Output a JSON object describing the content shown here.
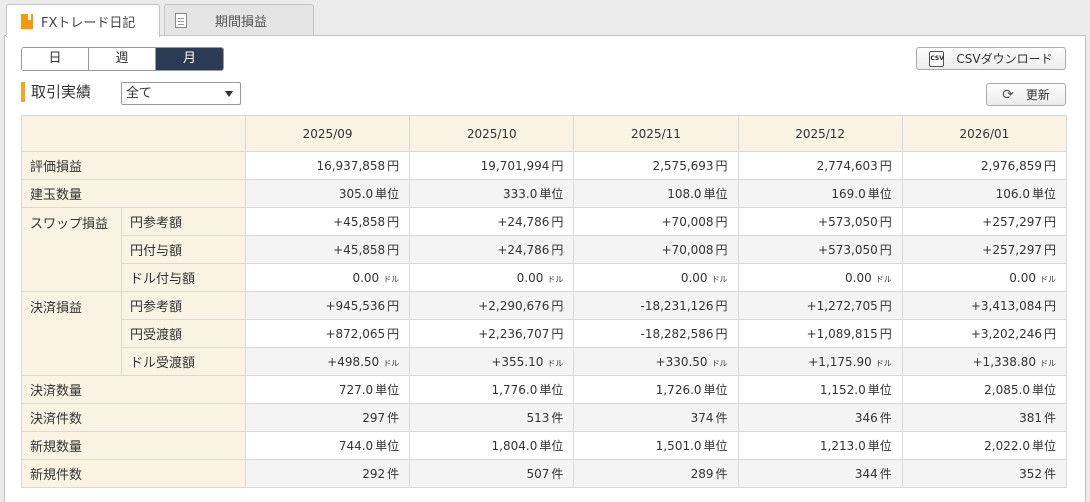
{
  "tabs": [
    {
      "label": "FXトレード日記",
      "icon": "notebook-icon",
      "active": true
    },
    {
      "label": "期間損益",
      "icon": "document-icon",
      "active": false
    }
  ],
  "period": {
    "options": [
      "日",
      "週",
      "月"
    ],
    "selected": "月"
  },
  "csv_button": {
    "label": "CSVダウンロード",
    "icon": "csv-icon"
  },
  "refresh_button": {
    "label": "更新",
    "icon": "refresh-icon"
  },
  "section": {
    "title": "取引実績",
    "filter_value": "全て"
  },
  "table": {
    "columns": [
      "2025/09",
      "2025/10",
      "2025/11",
      "2025/12",
      "2026/01"
    ],
    "rows": [
      {
        "group": "評価損益",
        "sub": "",
        "unit": "円",
        "values": [
          "16,937,858",
          "19,701,994",
          "2,575,693",
          "2,774,603",
          "2,976,859"
        ]
      },
      {
        "group": "建玉数量",
        "sub": "",
        "unit": "単位",
        "values": [
          "305.0",
          "333.0",
          "108.0",
          "169.0",
          "106.0"
        ]
      },
      {
        "group": "スワップ損益",
        "sub": "円参考額",
        "unit": "円",
        "values": [
          "+45,858",
          "+24,786",
          "+70,008",
          "+573,050",
          "+257,297"
        ]
      },
      {
        "group": "",
        "sub": "円付与額",
        "unit": "円",
        "values": [
          "+45,858",
          "+24,786",
          "+70,008",
          "+573,050",
          "+257,297"
        ]
      },
      {
        "group": "",
        "sub": "ドル付与額",
        "unit": "ドル",
        "values": [
          "0.00",
          "0.00",
          "0.00",
          "0.00",
          "0.00"
        ]
      },
      {
        "group": "決済損益",
        "sub": "円参考額",
        "unit": "円",
        "values": [
          "+945,536",
          "+2,290,676",
          "-18,231,126",
          "+1,272,705",
          "+3,413,084"
        ]
      },
      {
        "group": "",
        "sub": "円受渡額",
        "unit": "円",
        "values": [
          "+872,065",
          "+2,236,707",
          "-18,282,586",
          "+1,089,815",
          "+3,202,246"
        ]
      },
      {
        "group": "",
        "sub": "ドル受渡額",
        "unit": "ドル",
        "values": [
          "+498.50",
          "+355.10",
          "+330.50",
          "+1,175.90",
          "+1,338.80"
        ]
      },
      {
        "group": "決済数量",
        "sub": "",
        "unit": "単位",
        "values": [
          "727.0",
          "1,776.0",
          "1,726.0",
          "1,152.0",
          "2,085.0"
        ]
      },
      {
        "group": "決済件数",
        "sub": "",
        "unit": "件",
        "values": [
          "297",
          "513",
          "374",
          "346",
          "381"
        ]
      },
      {
        "group": "新規数量",
        "sub": "",
        "unit": "単位",
        "values": [
          "744.0",
          "1,804.0",
          "1,501.0",
          "1,213.0",
          "2,022.0"
        ]
      },
      {
        "group": "新規件数",
        "sub": "",
        "unit": "件",
        "values": [
          "292",
          "507",
          "289",
          "344",
          "352"
        ]
      }
    ]
  }
}
